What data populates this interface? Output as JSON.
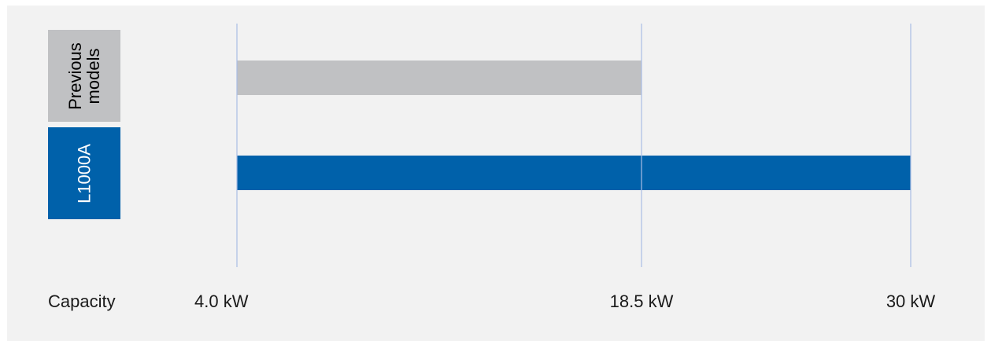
{
  "chart_data": {
    "type": "bar",
    "orientation": "horizontal",
    "categories": [
      "Previous models",
      "L1000A"
    ],
    "category_labels": [
      "Previous\nmodels",
      "L1000A"
    ],
    "series": [
      {
        "values": [
          18.5,
          30
        ],
        "colors": [
          "#c0c1c3",
          "#0061aa"
        ]
      }
    ],
    "ranges": [
      {
        "category": "Previous models",
        "from": 4.0,
        "to": 18.5
      },
      {
        "category": "L1000A",
        "from": 4.0,
        "to": 30
      }
    ],
    "xlabel": "Capacity",
    "ticks": [
      {
        "value": 4.0,
        "label": "4.0 kW"
      },
      {
        "value": 18.5,
        "label": "18.5 kW"
      },
      {
        "value": 30,
        "label": "30 kW"
      }
    ],
    "grid": true,
    "gridline_color": "#a9bde4",
    "colors": {
      "previous": "#c0c1c3",
      "l1000a": "#0061aa",
      "background": "#f2f2f2"
    }
  }
}
